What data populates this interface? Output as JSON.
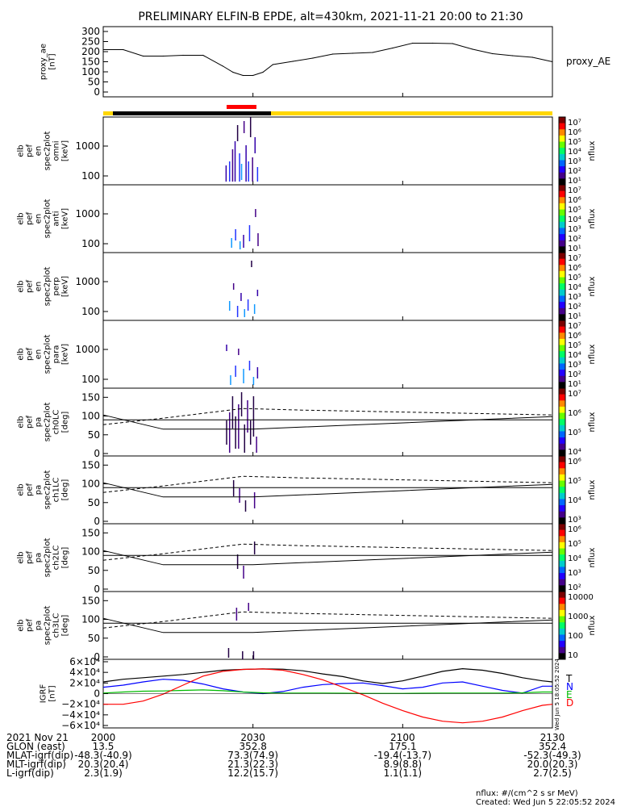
{
  "title": "PRELIMINARY ELFIN-B EPDE, alt=430km, 2021-11-21 20:00 to 21:30",
  "legend_labels": {
    "proxy_ae": "proxy_AE",
    "grf_components": [
      "T",
      "N",
      "E",
      "D"
    ],
    "nflux": "nflux",
    "footer_units": "nflux: #/(cm^2 s sr MeV)",
    "created": "Created: Wed Jun  5 22:05:52 2024",
    "side_stamp": "Wed Jun  5 18:05:52 2024"
  },
  "colors": {
    "fast_segment": "#ff0000",
    "shadow_bar": "#000000",
    "sunlit_bar": "#ffd700",
    "grf_T": "#000000",
    "grf_N": "#0000ff",
    "grf_E": "#00bb00",
    "grf_D": "#ff0000"
  },
  "panels": [
    {
      "id": "proxy_ae",
      "ylabel": [
        "proxy_ae",
        "[nT]"
      ],
      "yticks": [
        "0",
        "50",
        "100",
        "150",
        "200",
        "250",
        "300"
      ]
    },
    {
      "id": "en_omni",
      "ylabel": [
        "elb",
        "pef",
        "en",
        "spec2plot",
        "omni",
        "[keV]"
      ],
      "yticks": [
        "100",
        "1000"
      ],
      "colorbar": [
        "10¹",
        "10²",
        "10³",
        "10⁴",
        "10⁵",
        "10⁶",
        "10⁷"
      ]
    },
    {
      "id": "en_anti",
      "ylabel": [
        "elb",
        "pef",
        "en",
        "spec2plot",
        "anti",
        "[keV]"
      ],
      "yticks": [
        "100",
        "1000"
      ],
      "colorbar": [
        "10¹",
        "10²",
        "10³",
        "10⁴",
        "10⁵",
        "10⁶",
        "10⁷"
      ]
    },
    {
      "id": "en_perp",
      "ylabel": [
        "elb",
        "pef",
        "en",
        "spec2plot",
        "perp",
        "[keV]"
      ],
      "yticks": [
        "100",
        "1000"
      ],
      "colorbar": [
        "10¹",
        "10²",
        "10³",
        "10⁴",
        "10⁵",
        "10⁶",
        "10⁷"
      ]
    },
    {
      "id": "en_para",
      "ylabel": [
        "elb",
        "pef",
        "en",
        "spec2plot",
        "para",
        "[keV]"
      ],
      "yticks": [
        "100",
        "1000"
      ],
      "colorbar": [
        "10¹",
        "10²",
        "10³",
        "10⁴",
        "10⁵",
        "10⁶",
        "10⁷"
      ]
    },
    {
      "id": "pa_ch0",
      "ylabel": [
        "elb",
        "pef",
        "pa",
        "spec2plot",
        "ch0LC",
        "[deg]"
      ],
      "yticks": [
        "0",
        "50",
        "100",
        "150"
      ],
      "colorbar": [
        "10⁴",
        "10⁵",
        "10⁶",
        "10⁷"
      ]
    },
    {
      "id": "pa_ch1",
      "ylabel": [
        "elb",
        "pef",
        "pa",
        "spec2plot",
        "ch1LC",
        "[deg]"
      ],
      "yticks": [
        "0",
        "50",
        "100",
        "150"
      ],
      "colorbar": [
        "10³",
        "10⁴",
        "10⁵",
        "10⁶"
      ]
    },
    {
      "id": "pa_ch2",
      "ylabel": [
        "elb",
        "pef",
        "pa",
        "spec2plot",
        "ch2LC",
        "[deg]"
      ],
      "yticks": [
        "0",
        "50",
        "100",
        "150"
      ],
      "colorbar": [
        "10²",
        "10³",
        "10⁴",
        "10⁵",
        "10⁶"
      ]
    },
    {
      "id": "pa_ch3",
      "ylabel": [
        "elb",
        "pef",
        "pa",
        "spec2plot",
        "ch3LC",
        "[deg]"
      ],
      "yticks": [
        "0",
        "50",
        "100",
        "150"
      ],
      "colorbar": [
        "10",
        "100",
        "1000",
        "10000"
      ]
    },
    {
      "id": "igrf",
      "ylabel": [
        "IGRF",
        "[nT]"
      ],
      "yticks": [
        "−6×10⁴",
        "−4×10⁴",
        "−2×10⁴",
        "0",
        "2×10⁴",
        "4×10⁴",
        "6×10⁴"
      ]
    }
  ],
  "chart_data": [
    {
      "type": "line",
      "title": "",
      "ylabel": "proxy_ae [nT]",
      "ylim": [
        0,
        300
      ],
      "x_minutes": [
        0,
        4,
        8,
        12,
        16,
        20,
        24,
        26,
        28,
        30,
        32,
        34,
        38,
        42,
        46,
        50,
        54,
        58,
        62,
        66,
        70,
        74,
        78,
        82,
        86,
        90
      ],
      "series": [
        {
          "name": "proxy_AE",
          "values": [
            210,
            210,
            178,
            178,
            182,
            182,
            128,
            98,
            82,
            82,
            98,
            136,
            152,
            168,
            188,
            192,
            196,
            218,
            242,
            242,
            240,
            212,
            190,
            180,
            172,
            150
          ]
        }
      ]
    },
    {
      "type": "line",
      "title": "",
      "ylabel": "IGRF [nT]",
      "ylim": [
        -60000,
        60000
      ],
      "x_minutes": [
        0,
        4,
        8,
        12,
        16,
        20,
        24,
        28,
        32,
        36,
        40,
        44,
        48,
        52,
        56,
        60,
        64,
        68,
        72,
        76,
        80,
        84,
        88,
        90
      ],
      "series": [
        {
          "name": "T",
          "values": [
            22000,
            27000,
            30000,
            33000,
            36000,
            40000,
            44000,
            45500,
            46500,
            46000,
            43000,
            37000,
            32000,
            24000,
            19000,
            24000,
            33000,
            42000,
            47000,
            44000,
            38000,
            30000,
            24000,
            22000
          ]
        },
        {
          "name": "N",
          "values": [
            12000,
            16000,
            22000,
            27000,
            25000,
            18000,
            9000,
            3000,
            0,
            4000,
            12000,
            17000,
            19000,
            20000,
            15000,
            9000,
            12000,
            20000,
            22000,
            14000,
            6000,
            1000,
            14000,
            14000
          ]
        },
        {
          "name": "E",
          "values": [
            1000,
            3000,
            4500,
            5000,
            6000,
            7000,
            5500,
            3000,
            1500,
            1000,
            1000,
            1000,
            800,
            500,
            500,
            500,
            700,
            1000,
            1000,
            1000,
            1000,
            1500,
            3000,
            3000
          ]
        },
        {
          "name": "D",
          "values": [
            -20000,
            -20000,
            -14000,
            -1000,
            16000,
            33000,
            42000,
            45500,
            46500,
            44000,
            36000,
            26000,
            12000,
            -2000,
            -18000,
            -32000,
            -44000,
            -52000,
            -55000,
            -52000,
            -44000,
            -32000,
            -22000,
            -20000
          ]
        }
      ]
    }
  ],
  "xaxis": {
    "rows": [
      {
        "label": "2021 Nov 21",
        "values": [
          "2000",
          "2030",
          "2100",
          "2130"
        ]
      },
      {
        "label": "GLON (east)",
        "values": [
          "13.5",
          "352.8",
          "175.1",
          "352.4"
        ]
      },
      {
        "label": "MLAT-igrf(dip)",
        "values": [
          "-48.3(-40.9)",
          "73.3(74.9)",
          "-19.4(-13.7)",
          "-52.3(-49.3)"
        ]
      },
      {
        "label": "MLT-igrf(dip)",
        "values": [
          "20.3(20.4)",
          "21.3(22.3)",
          "8.9(8.8)",
          "20.0(20.3)"
        ]
      },
      {
        "label": "L-igrf(dip)",
        "values": [
          "2.3(1.9)",
          "12.2(15.7)",
          "1.1(1.1)",
          "2.7(2.5)"
        ]
      }
    ]
  }
}
